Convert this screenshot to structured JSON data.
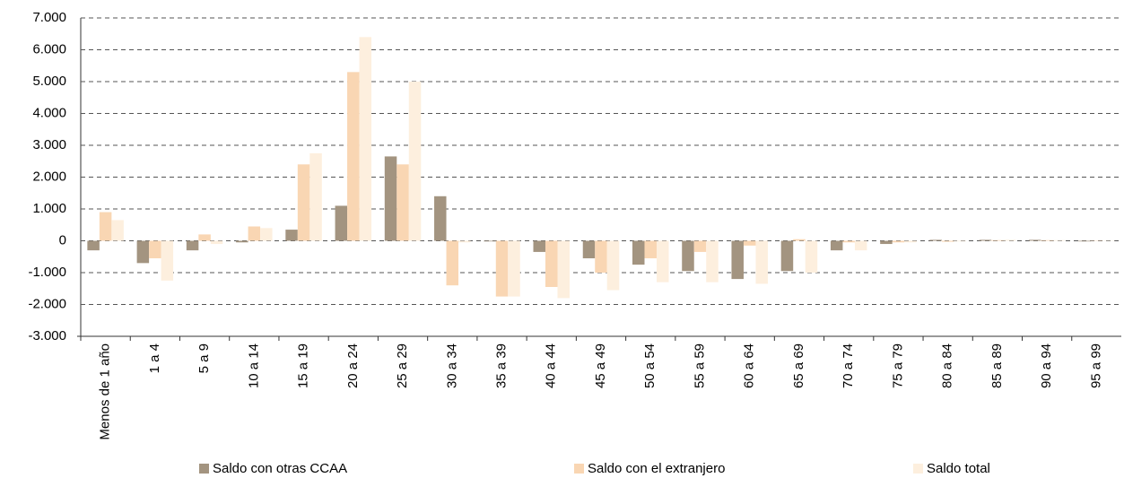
{
  "chart_data": {
    "type": "bar",
    "categories": [
      "Menos de 1 año",
      "1 a 4",
      "5 a 9",
      "10 a 14",
      "15 a 19",
      "20 a 24",
      "25 a 29",
      "30 a 34",
      "35 a 39",
      "40 a 44",
      "45 a 49",
      "50 a 54",
      "55 a 59",
      "60 a 64",
      "65 a 69",
      "70 a 74",
      "75 a 79",
      "80 a 84",
      "85 a 89",
      "90 a 94",
      "95 a 99"
    ],
    "series": [
      {
        "name": "Saldo con otras CCAA",
        "color": "#a39480",
        "values": [
          -300,
          -700,
          -300,
          -50,
          350,
          1100,
          2650,
          1400,
          -20,
          -350,
          -550,
          -750,
          -950,
          -1200,
          -950,
          -300,
          -100,
          30,
          30,
          30,
          -20
        ]
      },
      {
        "name": "Saldo con el extranjero",
        "color": "#f9d6b3",
        "values": [
          900,
          -550,
          200,
          450,
          2400,
          5300,
          2400,
          -1400,
          -1750,
          -1450,
          -1000,
          -550,
          -350,
          -150,
          50,
          -50,
          -50,
          -30,
          20,
          20,
          -10
        ]
      },
      {
        "name": "Saldo total",
        "color": "#fdefde",
        "values": [
          650,
          -1250,
          -100,
          400,
          2750,
          6400,
          5000,
          -50,
          -1750,
          -1800,
          -1550,
          -1300,
          -1300,
          -1350,
          -1000,
          -300,
          -50,
          -20,
          30,
          20,
          -10
        ]
      }
    ],
    "ylim": [
      -3000,
      7000
    ],
    "yticks": [
      {
        "value": -3000,
        "label": "-3.000"
      },
      {
        "value": -2000,
        "label": "-2.000"
      },
      {
        "value": -1000,
        "label": "-1.000"
      },
      0,
      {
        "value": 1000,
        "label": "1.000"
      },
      {
        "value": 2000,
        "label": "2.000"
      },
      {
        "value": 3000,
        "label": "3.000"
      },
      {
        "value": 4000,
        "label": "4.000"
      },
      {
        "value": 5000,
        "label": "5.000"
      },
      {
        "value": 6000,
        "label": "6.000"
      },
      {
        "value": 7000,
        "label": "7.000"
      }
    ],
    "grid": true,
    "legend": "bottom"
  }
}
